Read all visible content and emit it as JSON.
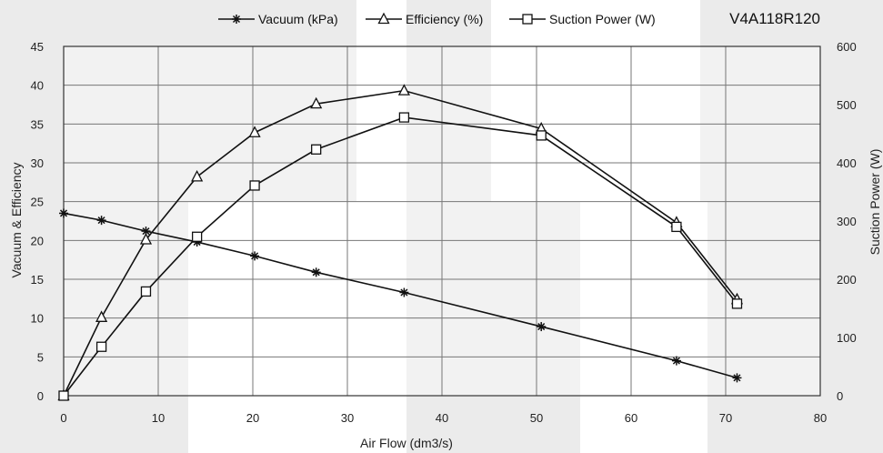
{
  "chart_data": {
    "type": "line",
    "title": "V4A118R120",
    "xlabel": "Air Flow (dm3/s)",
    "ylabel_left": "Vacuum  & Efficiency",
    "ylabel_right": "Suction Power (W)",
    "xlim": [
      0,
      80
    ],
    "ylim_left": [
      0,
      45
    ],
    "ylim_right": [
      0,
      600
    ],
    "x_ticks": [
      "0",
      "10",
      "20",
      "30",
      "40",
      "50",
      "60",
      "70",
      "80"
    ],
    "y_left_ticks": [
      "0",
      "5",
      "10",
      "15",
      "20",
      "25",
      "30",
      "35",
      "40",
      "45"
    ],
    "y_right_ticks": [
      "0",
      "100",
      "200",
      "300",
      "400",
      "500",
      "600"
    ],
    "grid": true,
    "legend_position": "top",
    "series": [
      {
        "name": "Vacuum (kPa)",
        "marker": "star",
        "axis": "left",
        "x": [
          0,
          4,
          8.7,
          14.1,
          20.2,
          26.7,
          36,
          50.5,
          64.8,
          71.2
        ],
        "values": [
          23.5,
          22.6,
          21.2,
          19.8,
          18,
          15.9,
          13.3,
          8.9,
          4.5,
          2.3
        ]
      },
      {
        "name": "Efficiency (%)",
        "marker": "triangle",
        "axis": "left",
        "x": [
          0,
          4,
          8.7,
          14.1,
          20.2,
          26.7,
          36,
          50.5,
          64.8,
          71.2
        ],
        "values": [
          0,
          10.1,
          20.1,
          28.2,
          33.9,
          37.6,
          39.3,
          34.4,
          22.3,
          12.4
        ]
      },
      {
        "name": "Suction Power (W)",
        "marker": "square",
        "axis": "right",
        "x": [
          0,
          4,
          8.7,
          14.1,
          20.2,
          26.7,
          36,
          50.5,
          64.8,
          71.2
        ],
        "values": [
          0,
          84,
          179,
          273,
          361,
          423,
          478,
          447,
          290,
          158
        ]
      }
    ]
  }
}
